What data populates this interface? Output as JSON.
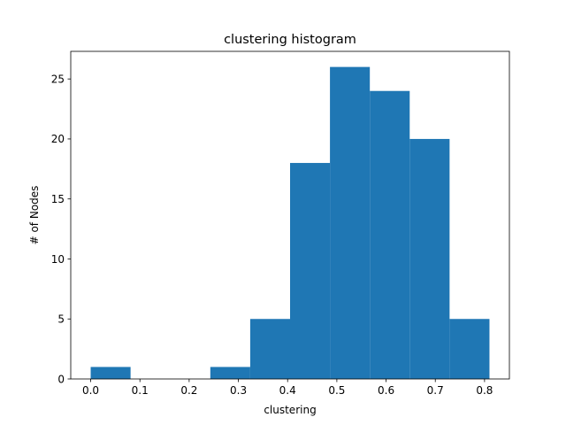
{
  "chart_data": {
    "type": "bar",
    "title": "clustering histogram",
    "xlabel": "clustering",
    "ylabel": "# of Nodes",
    "xlim": [
      -0.0405,
      0.8505
    ],
    "ylim": [
      0,
      27.3
    ],
    "xticks": [
      0.0,
      0.1,
      0.2,
      0.3,
      0.4,
      0.5,
      0.6,
      0.7,
      0.8
    ],
    "xtick_labels": [
      "0.0",
      "0.1",
      "0.2",
      "0.3",
      "0.4",
      "0.5",
      "0.6",
      "0.7",
      "0.8"
    ],
    "yticks": [
      0,
      5,
      10,
      15,
      20,
      25
    ],
    "ytick_labels": [
      "0",
      "5",
      "10",
      "15",
      "20",
      "25"
    ],
    "bin_edges": [
      0.0,
      0.081,
      0.162,
      0.243,
      0.324,
      0.405,
      0.486,
      0.567,
      0.648,
      0.729,
      0.81
    ],
    "values": [
      1,
      0,
      0,
      1,
      5,
      18,
      26,
      24,
      20,
      5
    ],
    "grid": false,
    "bar_color": "#1f77b4"
  }
}
